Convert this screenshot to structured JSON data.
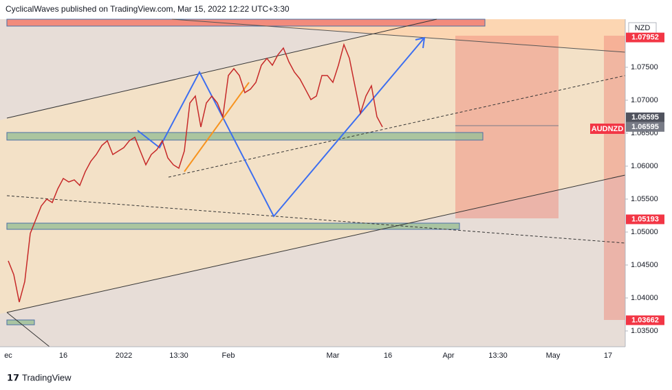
{
  "header": "CyclicalWaves published on TradingView.com, Mar 15, 2022 12:22 UTC+3:30",
  "footer": "TradingView",
  "chart_data": {
    "type": "line",
    "categories": [
      "ec",
      null,
      null,
      null,
      null,
      null,
      null,
      null,
      null,
      null,
      "16",
      null,
      null,
      null,
      null,
      null,
      null,
      null,
      null,
      null,
      null,
      "2022",
      null,
      null,
      null,
      null,
      null,
      null,
      null,
      null,
      null,
      "13:30",
      null,
      null,
      null,
      null,
      null,
      null,
      null,
      null,
      "Feb",
      null,
      null,
      null,
      null,
      null,
      null,
      null,
      null,
      null,
      null,
      null,
      null,
      null,
      null,
      null,
      null,
      null,
      null,
      "Mar",
      null,
      null,
      null,
      null,
      null,
      null,
      null,
      null,
      null,
      "16",
      null,
      null,
      null,
      null,
      null,
      null,
      null,
      null,
      null,
      null,
      "Apr",
      null,
      null,
      null,
      null,
      null,
      null,
      null,
      null,
      "13:30",
      null,
      null,
      null,
      null,
      null,
      null,
      null,
      null,
      null,
      "May",
      null,
      null,
      null,
      null,
      null,
      null,
      null,
      null,
      null,
      "17",
      null,
      null
    ],
    "series": [
      {
        "name": "AUDNZD",
        "color": "#c62828",
        "values": [
          1.04563,
          1.04354,
          1.03938,
          1.0425,
          1.04979,
          1.05188,
          1.05396,
          1.055,
          1.05448,
          1.05656,
          1.05813,
          1.0576,
          1.05792,
          1.05708,
          1.05917,
          1.06073,
          1.06177,
          1.06313,
          1.06385,
          1.06177,
          1.06229,
          1.06281,
          1.06385,
          1.06438,
          1.06229,
          1.06021,
          1.06177,
          1.0625,
          1.06385,
          1.06125,
          1.06021,
          1.05969,
          1.06229,
          1.06958,
          1.07063,
          1.06594,
          1.06958,
          1.07063,
          1.06958,
          1.0675,
          1.07375,
          1.07479,
          1.07375,
          1.07115,
          1.07167,
          1.07271,
          1.07531,
          1.07635,
          1.07531,
          1.07688,
          1.07792,
          1.07583,
          1.07427,
          1.07323,
          1.07167,
          1.0701,
          1.07063,
          1.07375,
          1.07375,
          1.07271,
          1.07531,
          1.07844,
          1.07635,
          1.07219,
          1.06802,
          1.07063,
          1.07219,
          1.0675,
          1.06595,
          null,
          null,
          null,
          null,
          null,
          null,
          null,
          null,
          null,
          null,
          null,
          null,
          null,
          null,
          null,
          null,
          null,
          null,
          null,
          null,
          null,
          null,
          null,
          null,
          null,
          null,
          null,
          null,
          null,
          null,
          null,
          null,
          null,
          null,
          null,
          null,
          null,
          null,
          null,
          null,
          null,
          null,
          null
        ]
      }
    ],
    "ylim": [
      1.0326,
      1.08229
    ],
    "yticks": [
      {
        "value": 1.035,
        "label": "1.03500"
      },
      {
        "value": 1.04,
        "label": "1.04000"
      },
      {
        "value": 1.045,
        "label": "1.04500"
      },
      {
        "value": 1.05,
        "label": "1.05000"
      },
      {
        "value": 1.055,
        "label": "1.05500"
      },
      {
        "value": 1.06,
        "label": "1.06000"
      },
      {
        "value": 1.065,
        "label": "1.06500"
      },
      {
        "value": 1.07,
        "label": "1.07000"
      },
      {
        "value": 1.075,
        "label": "1.07500"
      }
    ],
    "currency": "NZD",
    "symbol_tag": "AUDNZD",
    "price_labels": [
      {
        "value": 1.07952,
        "color": "#f23645"
      },
      {
        "value": 1.06595,
        "color": "#787b86"
      },
      {
        "value": 1.06595,
        "color": "#50535e"
      },
      {
        "value": 1.05193,
        "color": "#f23645"
      },
      {
        "value": 1.03662,
        "color": "#f23645"
      }
    ]
  }
}
